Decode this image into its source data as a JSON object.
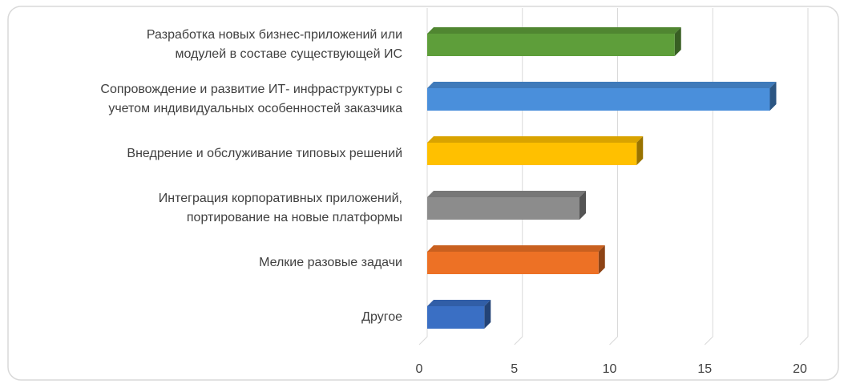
{
  "chart_data": {
    "type": "bar",
    "orientation": "horizontal",
    "three_d": true,
    "categories": [
      [
        "Разработка новых бизнес-приложений или",
        "модулей в составе существующей ИС"
      ],
      [
        "Сопровождение и развитие  ИТ- инфраструктуры с",
        "учетом индивидуальных особенностей заказчика"
      ],
      [
        "Внедрение и обслуживание типовых решений"
      ],
      [
        "Интеграция корпоративных приложений,",
        "портирование на новые платформы"
      ],
      [
        "Мелкие разовые задачи"
      ],
      [
        "Другое"
      ]
    ],
    "values": [
      13,
      18,
      11,
      8,
      9,
      3
    ],
    "colors": [
      "#5e9e3a",
      "#4a8fdb",
      "#ffc000",
      "#8c8c8c",
      "#ed7125",
      "#3a6fc4"
    ],
    "xlim": [
      0,
      20
    ],
    "xticks": [
      0,
      5,
      10,
      15,
      20
    ],
    "grid": true
  }
}
